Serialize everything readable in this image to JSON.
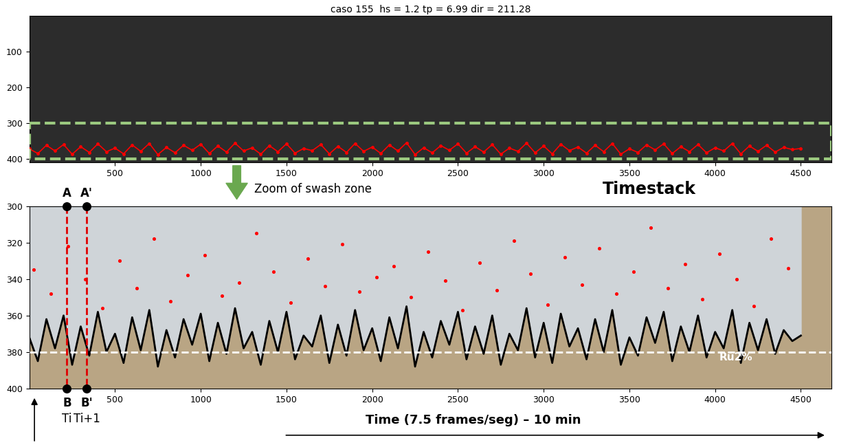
{
  "chart_data": [
    {
      "type": "line",
      "title": "caso 155  hs = 1.2 tp = 6.99 dir = 211.28",
      "xlim": [
        0,
        4680
      ],
      "ylim": [
        410,
        0
      ],
      "xticks": [
        500,
        1000,
        1500,
        2000,
        2500,
        3000,
        3500,
        4000,
        4500
      ],
      "yticks": [
        100,
        200,
        300,
        400
      ],
      "series": [
        {
          "type": "line",
          "color": "#ff0000",
          "marker": "o",
          "x": [
            0,
            50,
            100,
            150,
            200,
            250,
            300,
            350,
            400,
            450,
            500,
            550,
            600,
            650,
            700,
            750,
            800,
            850,
            900,
            950,
            1000,
            1050,
            1100,
            1150,
            1200,
            1250,
            1300,
            1350,
            1400,
            1450,
            1500,
            1550,
            1600,
            1650,
            1700,
            1750,
            1800,
            1850,
            1900,
            1950,
            2000,
            2050,
            2100,
            2150,
            2200,
            2250,
            2300,
            2350,
            2400,
            2450,
            2500,
            2550,
            2600,
            2650,
            2700,
            2750,
            2800,
            2850,
            2900,
            2950,
            3000,
            3050,
            3100,
            3150,
            3200,
            3250,
            3300,
            3350,
            3400,
            3450,
            3500,
            3550,
            3600,
            3650,
            3700,
            3750,
            3800,
            3850,
            3900,
            3950,
            4000,
            4050,
            4100,
            4150,
            4200,
            4250,
            4300,
            4350,
            4400,
            4450,
            4500
          ],
          "values": [
            372,
            385,
            362,
            378,
            360,
            387,
            366,
            382,
            358,
            380,
            370,
            386,
            361,
            379,
            357,
            388,
            368,
            383,
            362,
            376,
            359,
            385,
            364,
            381,
            356,
            378,
            369,
            387,
            363,
            380,
            358,
            384,
            371,
            377,
            360,
            386,
            365,
            382,
            357,
            379,
            367,
            385,
            361,
            378,
            355,
            388,
            369,
            383,
            363,
            376,
            358,
            384,
            366,
            381,
            360,
            387,
            370,
            379,
            356,
            383,
            364,
            386,
            359,
            377,
            367,
            384,
            362,
            380,
            357,
            387,
            372,
            382,
            361,
            375,
            358,
            385,
            366,
            380,
            360,
            383,
            369,
            378,
            357,
            386,
            364,
            379,
            362,
            381,
            368,
            374,
            371
          ]
        }
      ]
    },
    {
      "type": "line",
      "xlabel": "Time (7.5 frames/seg) – 10 min",
      "xlim": [
        0,
        4680
      ],
      "ylim": [
        400,
        300
      ],
      "xticks": [
        500,
        1000,
        1500,
        2000,
        2500,
        3000,
        3500,
        4000,
        4500
      ],
      "yticks": [
        300,
        320,
        340,
        360,
        380,
        400
      ],
      "series": [
        {
          "type": "line",
          "color": "#000000",
          "x": [
            0,
            50,
            100,
            150,
            200,
            250,
            300,
            350,
            400,
            450,
            500,
            550,
            600,
            650,
            700,
            750,
            800,
            850,
            900,
            950,
            1000,
            1050,
            1100,
            1150,
            1200,
            1250,
            1300,
            1350,
            1400,
            1450,
            1500,
            1550,
            1600,
            1650,
            1700,
            1750,
            1800,
            1850,
            1900,
            1950,
            2000,
            2050,
            2100,
            2150,
            2200,
            2250,
            2300,
            2350,
            2400,
            2450,
            2500,
            2550,
            2600,
            2650,
            2700,
            2750,
            2800,
            2850,
            2900,
            2950,
            3000,
            3050,
            3100,
            3150,
            3200,
            3250,
            3300,
            3350,
            3400,
            3450,
            3500,
            3550,
            3600,
            3650,
            3700,
            3750,
            3800,
            3850,
            3900,
            3950,
            4000,
            4050,
            4100,
            4150,
            4200,
            4250,
            4300,
            4350,
            4400,
            4450,
            4500
          ],
          "values": [
            372,
            385,
            362,
            378,
            360,
            387,
            366,
            382,
            358,
            380,
            370,
            386,
            361,
            379,
            357,
            388,
            368,
            383,
            362,
            376,
            359,
            385,
            364,
            381,
            356,
            378,
            369,
            387,
            363,
            380,
            358,
            384,
            371,
            377,
            360,
            386,
            365,
            382,
            357,
            379,
            367,
            385,
            361,
            378,
            355,
            388,
            369,
            383,
            363,
            376,
            358,
            384,
            366,
            381,
            360,
            387,
            370,
            379,
            356,
            383,
            364,
            386,
            359,
            377,
            367,
            384,
            362,
            380,
            357,
            387,
            372,
            382,
            361,
            375,
            358,
            385,
            366,
            380,
            360,
            383,
            369,
            378,
            357,
            386,
            364,
            379,
            362,
            381,
            368,
            374,
            371
          ]
        },
        {
          "type": "scatter",
          "color": "#ff0000",
          "marker": "o",
          "x": [
            25,
            125,
            225,
            325,
            425,
            525,
            625,
            725,
            825,
            925,
            1025,
            1125,
            1225,
            1325,
            1425,
            1525,
            1625,
            1725,
            1825,
            1925,
            2025,
            2125,
            2225,
            2325,
            2425,
            2525,
            2625,
            2725,
            2825,
            2925,
            3025,
            3125,
            3225,
            3325,
            3425,
            3525,
            3625,
            3725,
            3825,
            3925,
            4025,
            4125,
            4225,
            4325,
            4425
          ],
          "values": [
            335,
            348,
            322,
            340,
            356,
            330,
            345,
            318,
            352,
            338,
            327,
            349,
            342,
            315,
            336,
            353,
            329,
            344,
            321,
            347,
            339,
            333,
            350,
            325,
            341,
            357,
            331,
            346,
            319,
            337,
            354,
            328,
            343,
            323,
            348,
            336,
            312,
            345,
            332,
            351,
            326,
            340,
            355,
            318,
            334
          ]
        }
      ],
      "threshold": {
        "label": "Ru2%",
        "value": 380,
        "color": "#ffffff",
        "line_style": "dashed"
      },
      "profiles": [
        {
          "x": 220,
          "top_label": "A",
          "bottom_label": "B",
          "time_label": "Ti"
        },
        {
          "x": 335,
          "top_label": "A'",
          "bottom_label": "B'",
          "time_label": "Ti+1"
        }
      ]
    }
  ],
  "annotations": {
    "zoom": "Zoom of swash zone",
    "name": "Timestack"
  }
}
